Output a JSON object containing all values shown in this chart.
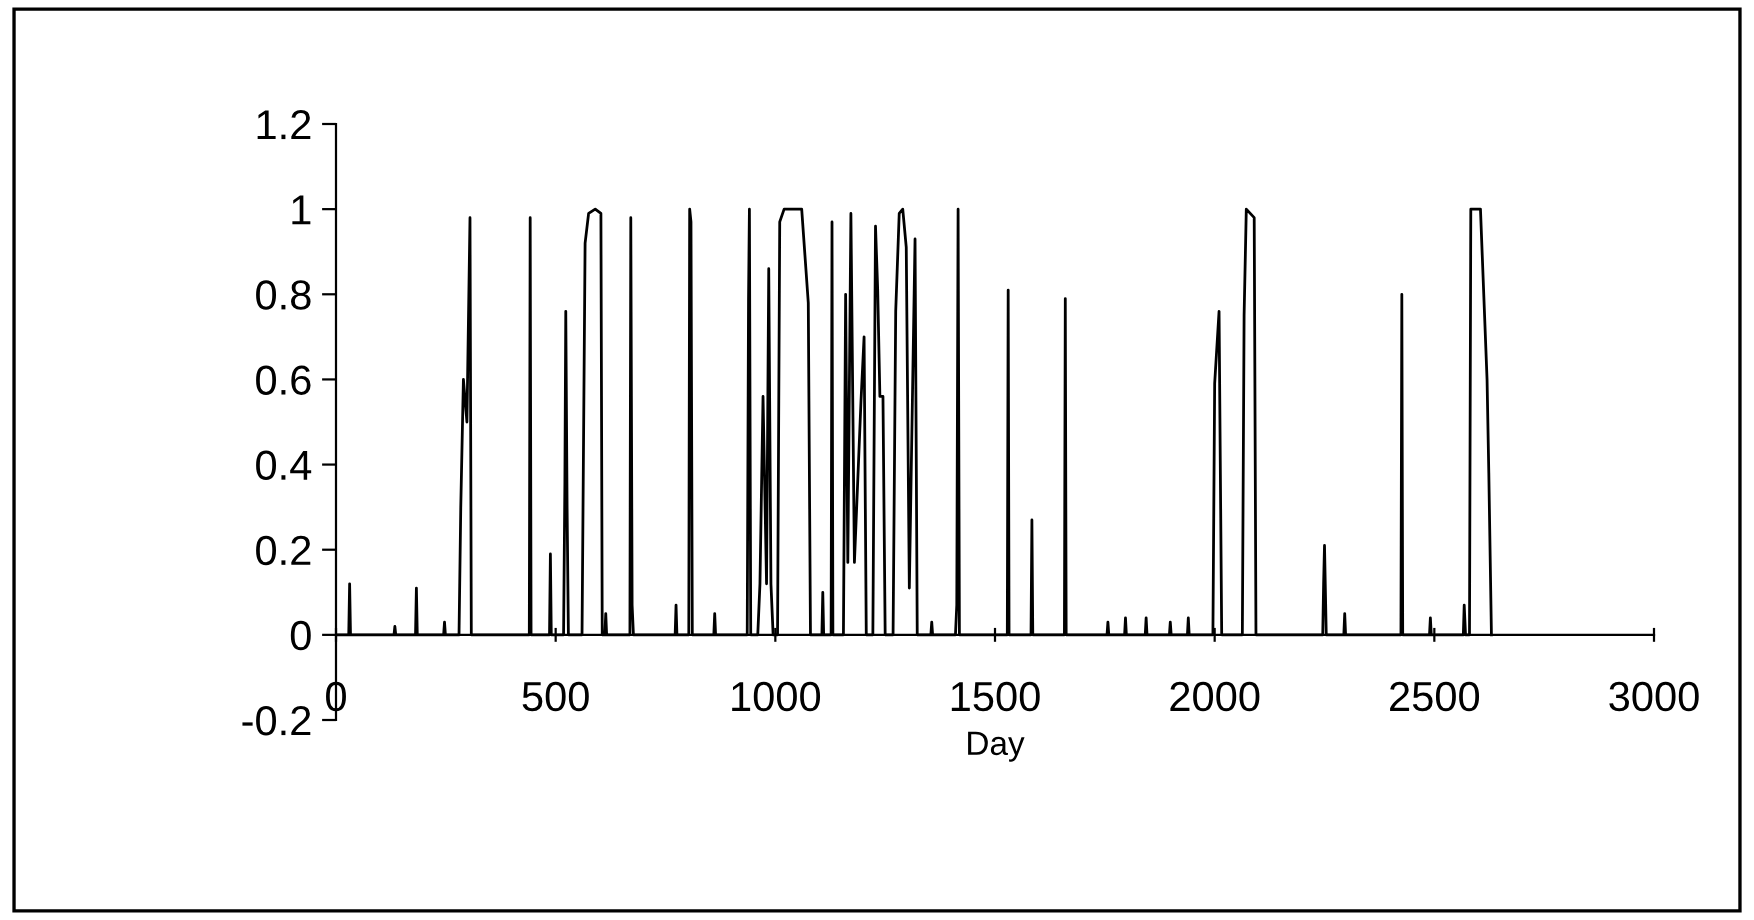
{
  "chart_data": {
    "type": "line",
    "xlabel": "Day",
    "color": "#000000",
    "marker": "none",
    "line_style": "solid",
    "grid": false,
    "legend": false,
    "x": [
      0,
      29,
      31,
      33,
      132,
      134,
      136,
      181,
      183,
      185,
      245,
      247,
      249,
      280,
      284,
      290,
      298,
      305,
      308,
      440,
      442,
      444,
      486,
      488,
      490,
      518,
      521,
      523,
      526,
      529,
      560,
      567,
      575,
      590,
      603,
      606,
      612,
      614,
      616,
      669,
      671,
      674,
      677,
      772,
      774,
      776,
      803,
      805,
      808,
      811,
      860,
      862,
      864,
      936,
      939,
      941,
      944,
      960,
      965,
      972,
      980,
      985,
      990,
      995,
      1005,
      1010,
      1020,
      1030,
      1045,
      1060,
      1075,
      1080,
      1106,
      1108,
      1110,
      1127,
      1129,
      1131,
      1155,
      1160,
      1165,
      1172,
      1180,
      1195,
      1202,
      1207,
      1222,
      1228,
      1233,
      1238,
      1245,
      1250,
      1268,
      1274,
      1282,
      1290,
      1298,
      1305,
      1318,
      1323,
      1354,
      1356,
      1358,
      1410,
      1413,
      1416,
      1419,
      1528,
      1530,
      1532,
      1582,
      1584,
      1586,
      1658,
      1660,
      1662,
      1755,
      1757,
      1759,
      1795,
      1797,
      1799,
      1842,
      1844,
      1846,
      1897,
      1899,
      1901,
      1938,
      1940,
      1942,
      1996,
      2000,
      2010,
      2016,
      2063,
      2067,
      2072,
      2090,
      2094,
      2246,
      2248,
      2250,
      2254,
      2294,
      2296,
      2298,
      2424,
      2426,
      2428,
      2489,
      2491,
      2493,
      2566,
      2568,
      2571,
      2580,
      2583,
      2605,
      2620,
      2624,
      2630
    ],
    "values": [
      0,
      0,
      0.12,
      0,
      0,
      0.02,
      0,
      0,
      0.11,
      0,
      0,
      0.03,
      0,
      0,
      0.3,
      0.6,
      0.5,
      0.98,
      0,
      0,
      0.98,
      0,
      0,
      0.19,
      0,
      0,
      0.36,
      0.76,
      0.3,
      0,
      0,
      0.92,
      0.99,
      1.0,
      0.99,
      0,
      0,
      0.05,
      0,
      0,
      0.98,
      0.07,
      0,
      0,
      0.07,
      0,
      0,
      1.0,
      0.97,
      0,
      0,
      0.05,
      0,
      0,
      0.79,
      1.0,
      0,
      0,
      0.12,
      0.56,
      0.12,
      0.86,
      0.12,
      0,
      0,
      0.97,
      1.0,
      1.0,
      1.0,
      1.0,
      0.78,
      0,
      0,
      0.1,
      0,
      0,
      0.97,
      0,
      0,
      0.8,
      0.17,
      0.99,
      0.17,
      0.55,
      0.7,
      0,
      0,
      0.96,
      0.81,
      0.56,
      0.56,
      0,
      0,
      0.76,
      0.99,
      1.0,
      0.91,
      0.11,
      0.93,
      0,
      0,
      0.03,
      0,
      0,
      0.07,
      1.0,
      0,
      0,
      0.81,
      0,
      0,
      0.27,
      0,
      0,
      0.79,
      0,
      0,
      0.03,
      0,
      0,
      0.04,
      0,
      0,
      0.04,
      0,
      0,
      0.03,
      0,
      0,
      0.04,
      0,
      0,
      0.59,
      0.76,
      0,
      0,
      0.75,
      1.0,
      0.98,
      0,
      0,
      0.12,
      0.21,
      0,
      0,
      0.05,
      0,
      0,
      0.8,
      0,
      0,
      0.04,
      0,
      0,
      0.07,
      0,
      0,
      1.0,
      1.0,
      0.6,
      0.38,
      0
    ],
    "xlim": [
      0,
      3000
    ],
    "xticks": [
      0,
      500,
      1000,
      1500,
      2000,
      2500,
      3000
    ],
    "ylim": [
      -0.2,
      1.2
    ],
    "yticks": [
      -0.2,
      0,
      0.2,
      0.4,
      0.6,
      0.8,
      1,
      1.2
    ]
  }
}
